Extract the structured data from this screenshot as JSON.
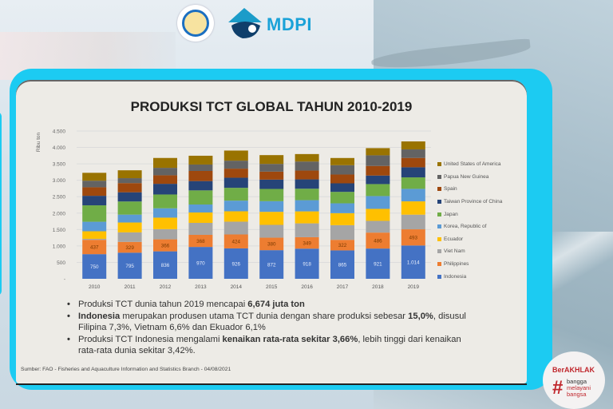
{
  "header": {
    "ministry_logo": "kkp-emblem",
    "mdpi_logo_text": "MDPI"
  },
  "badge": {
    "berakhlak": "BerAKHLAK",
    "hashtag": "#",
    "line1": "bangga",
    "line2": "melayani",
    "line3": "bangsa"
  },
  "slide": {
    "title": "PRODUKSI TCT GLOBAL TAHUN 2010-2019",
    "bullets": [
      {
        "pre": "Produksi TCT dunia tahun 2019 mencapai ",
        "bold": "6,674 juta ton",
        "post": ""
      },
      {
        "bold_first": "Indonesia",
        "mid": " merupakan produsen utama TCT dunia dengan share produksi  sebesar ",
        "bold": "15,0%",
        "post": ", disusul Filipina 7,3%, Vietnam 6,6% dan Ekuador 6,1%"
      },
      {
        "pre": "Produksi TCT Indonesia mengalami ",
        "bold": "kenaikan rata-rata sekitar 3,66%",
        "post": ", lebih tinggi dari kenaikan rata-rata dunia sekitar 3,42%."
      }
    ],
    "source": "Sumber: FAO - Fisheries and Aquaculture Information and Statistics Branch - 04/08/2021"
  },
  "chart_data": {
    "type": "bar",
    "stacked": true,
    "title": "PRODUKSI TCT GLOBAL TAHUN 2010-2019",
    "xlabel": "",
    "ylabel": "Ribu ton",
    "ylim": [
      0,
      4500
    ],
    "yticks": [
      0,
      500,
      1000,
      1500,
      2000,
      2500,
      3000,
      3500,
      4000,
      4500
    ],
    "ytick_labels": [
      "-",
      "500",
      "1.000",
      "1.500",
      "2.000",
      "2.500",
      "3.000",
      "3.500",
      "4.000",
      "4.500"
    ],
    "grid": true,
    "legend_position": "right",
    "categories": [
      "2010",
      "2011",
      "2012",
      "2013",
      "2014",
      "2015",
      "2016",
      "2017",
      "2018",
      "2019"
    ],
    "series": [
      {
        "name": "Indonesia",
        "color": "#4472c4",
        "labeled": true,
        "labels": [
          "750",
          "795",
          "836",
          "970",
          "926",
          "872",
          "918",
          "865",
          "921",
          "1.014"
        ],
        "values": [
          750,
          795,
          836,
          970,
          926,
          872,
          918,
          865,
          921,
          1014
        ]
      },
      {
        "name": "Philippines",
        "color": "#ed7d31",
        "labeled": true,
        "labels": [
          "437",
          "329",
          "366",
          "368",
          "424",
          "380",
          "349",
          "322",
          "486",
          "493"
        ],
        "values": [
          437,
          329,
          366,
          368,
          424,
          380,
          349,
          322,
          486,
          493
        ]
      },
      {
        "name": "Viet Nam",
        "color": "#a5a5a5",
        "values": [
          30,
          290,
          310,
          365,
          390,
          390,
          421,
          446,
          357,
          446
        ]
      },
      {
        "name": "Ecuador",
        "color": "#ffc000",
        "values": [
          230,
          300,
          350,
          316,
          316,
          397,
          365,
          365,
          365,
          405
        ]
      },
      {
        "name": "Korea, Republic of",
        "color": "#5b9bd5",
        "values": [
          290,
          240,
          285,
          243,
          324,
          324,
          341,
          300,
          390,
          381
        ]
      },
      {
        "name": "Japan",
        "color": "#70ad47",
        "values": [
          500,
          400,
          420,
          430,
          390,
          373,
          349,
          349,
          365,
          349
        ]
      },
      {
        "name": "Taiwan Province of China",
        "color": "#264478",
        "values": [
          290,
          280,
          325,
          284,
          308,
          284,
          284,
          260,
          260,
          308
        ]
      },
      {
        "name": "Spain",
        "color": "#9e480e",
        "values": [
          260,
          280,
          260,
          308,
          276,
          243,
          268,
          268,
          292,
          284
        ]
      },
      {
        "name": "Papua New Guinea",
        "color": "#636363",
        "values": [
          200,
          150,
          227,
          195,
          243,
          235,
          276,
          284,
          324,
          260
        ]
      },
      {
        "name": "United States of America",
        "color": "#997300",
        "values": [
          240,
          240,
          300,
          268,
          308,
          268,
          227,
          219,
          219,
          243
        ]
      }
    ]
  }
}
